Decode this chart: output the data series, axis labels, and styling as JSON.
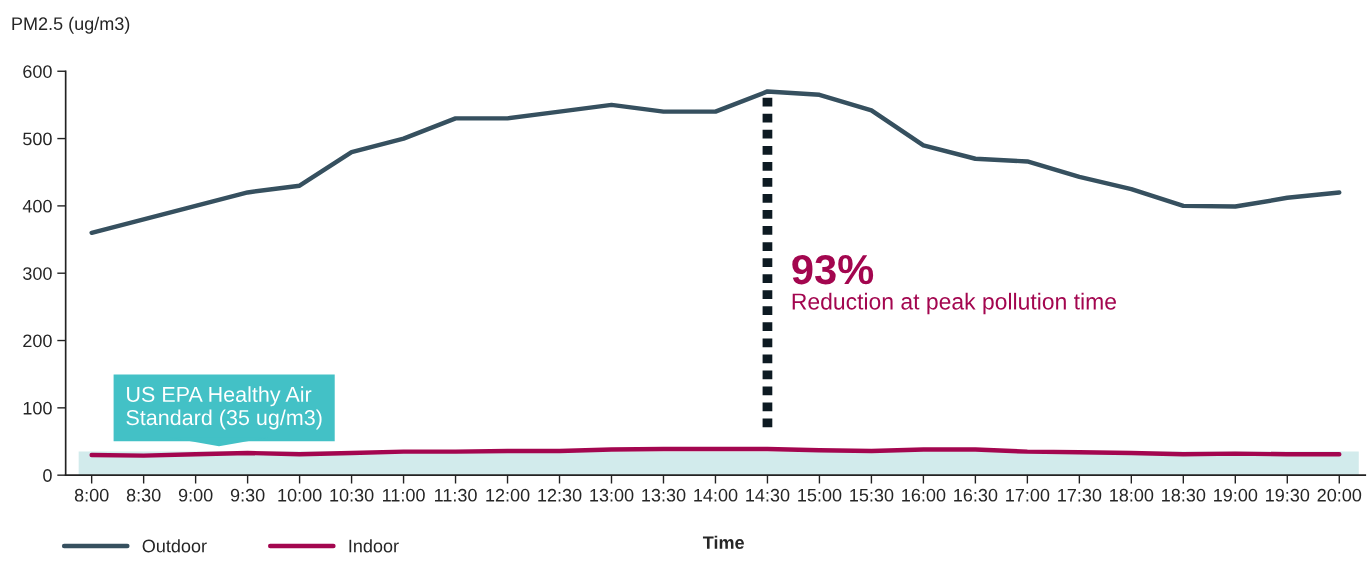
{
  "chart_data": {
    "type": "line",
    "ylabel": "PM2.5 (ug/m3)",
    "xlabel": "Time",
    "categories": [
      "8:00",
      "8:30",
      "9:00",
      "9:30",
      "10:00",
      "10:30",
      "11:00",
      "11:30",
      "12:00",
      "12:30",
      "13:00",
      "13:30",
      "14:00",
      "14:30",
      "15:00",
      "15:30",
      "16:00",
      "16:30",
      "17:00",
      "17:30",
      "18:00",
      "18:30",
      "19:00",
      "19:30",
      "20:00"
    ],
    "series": [
      {
        "name": "Outdoor",
        "color": "#36505f",
        "values": [
          360,
          380,
          400,
          420,
          430,
          480,
          500,
          530,
          530,
          540,
          550,
          540,
          540,
          570,
          565,
          542,
          490,
          470,
          466,
          443,
          425,
          400,
          399,
          412,
          420
        ]
      },
      {
        "name": "Indoor",
        "color": "#a3064f",
        "values": [
          30,
          29,
          31,
          33,
          31,
          33,
          35,
          35,
          36,
          36,
          38,
          39,
          39,
          39,
          37,
          36,
          38,
          38,
          35,
          34,
          33,
          31,
          32,
          31,
          31
        ]
      }
    ],
    "bands": [
      {
        "axis": "y",
        "from": 0,
        "to": 35,
        "label": "US EPA Healthy Air Standard (35 ug/m3)",
        "color": "#d2ebec"
      }
    ],
    "ref_lines": [
      {
        "axis": "x",
        "value": "14:30",
        "color": "#0d1a22",
        "line_style": "dotted"
      }
    ],
    "annotations": [
      "93%",
      "Reduction at peak pollution time"
    ],
    "ylim": [
      0,
      600
    ],
    "yticks": [
      0,
      100,
      200,
      300,
      400,
      500,
      600
    ],
    "legend": "bottom left",
    "grid": false
  }
}
